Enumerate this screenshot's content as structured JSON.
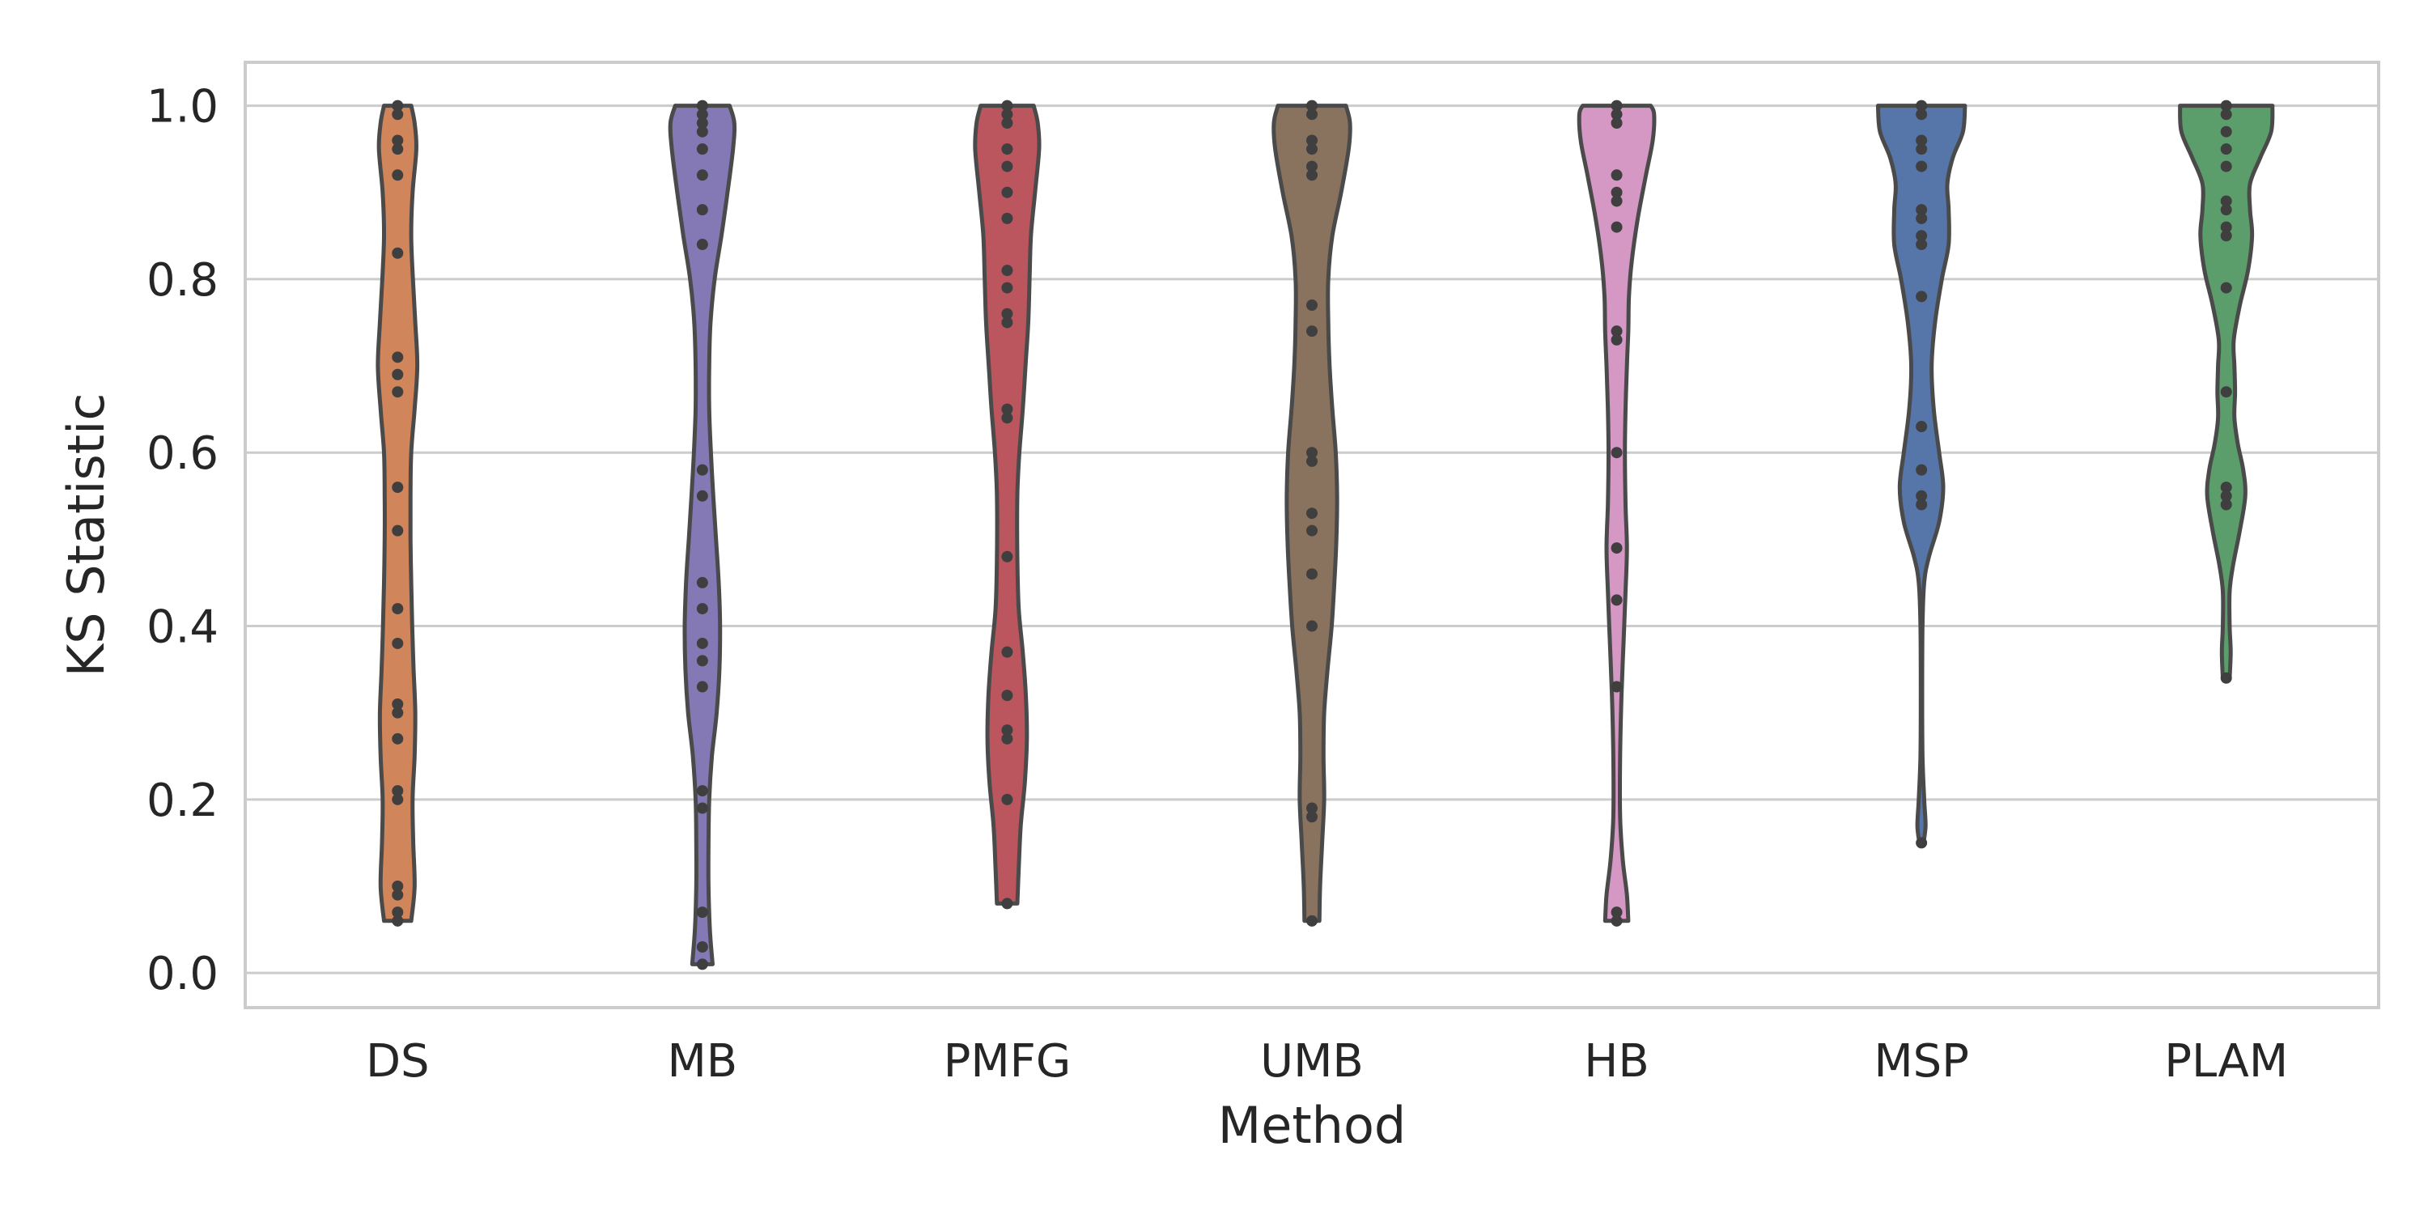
{
  "chart_data": {
    "type": "violin",
    "xlabel": "Method",
    "ylabel": "KS Statistic",
    "ylim": [
      -0.04,
      1.05
    ],
    "yticks": [
      "0.0",
      "0.2",
      "0.4",
      "0.6",
      "0.8",
      "1.0"
    ],
    "categories": [
      "DS",
      "MB",
      "PMFG",
      "UMB",
      "HB",
      "MSP",
      "PLAM"
    ],
    "grid": true,
    "series": [
      {
        "category": "DS",
        "color": "#d0855a",
        "min": 0.06,
        "max": 1.0,
        "points": [
          1.0,
          0.99,
          0.96,
          0.95,
          0.92,
          0.83,
          0.71,
          0.69,
          0.67,
          0.56,
          0.51,
          0.42,
          0.38,
          0.31,
          0.3,
          0.27,
          0.21,
          0.2,
          0.1,
          0.09,
          0.07,
          0.06
        ],
        "profile": [
          [
            0.06,
            0.4
          ],
          [
            0.1,
            0.5
          ],
          [
            0.15,
            0.46
          ],
          [
            0.2,
            0.44
          ],
          [
            0.25,
            0.5
          ],
          [
            0.3,
            0.52
          ],
          [
            0.35,
            0.47
          ],
          [
            0.4,
            0.43
          ],
          [
            0.45,
            0.4
          ],
          [
            0.5,
            0.38
          ],
          [
            0.55,
            0.38
          ],
          [
            0.6,
            0.4
          ],
          [
            0.65,
            0.5
          ],
          [
            0.7,
            0.58
          ],
          [
            0.75,
            0.52
          ],
          [
            0.8,
            0.45
          ],
          [
            0.85,
            0.4
          ],
          [
            0.9,
            0.44
          ],
          [
            0.95,
            0.55
          ],
          [
            0.98,
            0.5
          ],
          [
            1.0,
            0.4
          ]
        ]
      },
      {
        "category": "MB",
        "color": "#8479b5",
        "min": 0.01,
        "max": 1.0,
        "points": [
          1.0,
          0.99,
          0.98,
          0.97,
          0.95,
          0.92,
          0.88,
          0.84,
          0.58,
          0.55,
          0.45,
          0.42,
          0.38,
          0.36,
          0.33,
          0.21,
          0.19,
          0.07,
          0.03,
          0.01
        ],
        "profile": [
          [
            0.01,
            0.3
          ],
          [
            0.05,
            0.22
          ],
          [
            0.1,
            0.18
          ],
          [
            0.15,
            0.18
          ],
          [
            0.2,
            0.2
          ],
          [
            0.25,
            0.28
          ],
          [
            0.3,
            0.42
          ],
          [
            0.35,
            0.5
          ],
          [
            0.4,
            0.52
          ],
          [
            0.45,
            0.48
          ],
          [
            0.5,
            0.4
          ],
          [
            0.55,
            0.32
          ],
          [
            0.6,
            0.25
          ],
          [
            0.65,
            0.2
          ],
          [
            0.7,
            0.2
          ],
          [
            0.75,
            0.24
          ],
          [
            0.8,
            0.36
          ],
          [
            0.85,
            0.56
          ],
          [
            0.9,
            0.74
          ],
          [
            0.95,
            0.9
          ],
          [
            0.98,
            0.94
          ],
          [
            1.0,
            0.8
          ]
        ]
      },
      {
        "category": "PMFG",
        "color": "#bb555e",
        "min": 0.08,
        "max": 1.0,
        "points": [
          1.0,
          0.99,
          0.98,
          0.95,
          0.93,
          0.9,
          0.87,
          0.81,
          0.79,
          0.76,
          0.75,
          0.65,
          0.64,
          0.48,
          0.37,
          0.32,
          0.28,
          0.27,
          0.2,
          0.08
        ],
        "profile": [
          [
            0.08,
            0.3
          ],
          [
            0.12,
            0.34
          ],
          [
            0.17,
            0.4
          ],
          [
            0.22,
            0.52
          ],
          [
            0.27,
            0.58
          ],
          [
            0.32,
            0.55
          ],
          [
            0.37,
            0.46
          ],
          [
            0.42,
            0.34
          ],
          [
            0.48,
            0.3
          ],
          [
            0.55,
            0.3
          ],
          [
            0.6,
            0.36
          ],
          [
            0.65,
            0.46
          ],
          [
            0.7,
            0.54
          ],
          [
            0.75,
            0.62
          ],
          [
            0.8,
            0.66
          ],
          [
            0.85,
            0.7
          ],
          [
            0.9,
            0.82
          ],
          [
            0.95,
            0.94
          ],
          [
            0.98,
            0.9
          ],
          [
            1.0,
            0.78
          ]
        ]
      },
      {
        "category": "UMB",
        "color": "#8a735e",
        "min": 0.06,
        "max": 1.0,
        "points": [
          1.0,
          0.99,
          0.96,
          0.95,
          0.93,
          0.92,
          0.77,
          0.74,
          0.6,
          0.59,
          0.53,
          0.51,
          0.46,
          0.4,
          0.19,
          0.18,
          0.06
        ],
        "profile": [
          [
            0.06,
            0.22
          ],
          [
            0.1,
            0.24
          ],
          [
            0.15,
            0.3
          ],
          [
            0.2,
            0.36
          ],
          [
            0.25,
            0.34
          ],
          [
            0.3,
            0.36
          ],
          [
            0.35,
            0.46
          ],
          [
            0.4,
            0.58
          ],
          [
            0.45,
            0.66
          ],
          [
            0.5,
            0.72
          ],
          [
            0.55,
            0.74
          ],
          [
            0.6,
            0.7
          ],
          [
            0.65,
            0.6
          ],
          [
            0.7,
            0.52
          ],
          [
            0.75,
            0.48
          ],
          [
            0.8,
            0.48
          ],
          [
            0.85,
            0.6
          ],
          [
            0.9,
            0.86
          ],
          [
            0.95,
            1.08
          ],
          [
            0.98,
            1.12
          ],
          [
            1.0,
            1.0
          ]
        ]
      },
      {
        "category": "HB",
        "color": "#d597c4",
        "min": 0.06,
        "max": 1.0,
        "points": [
          1.0,
          0.99,
          0.98,
          0.92,
          0.9,
          0.89,
          0.86,
          0.74,
          0.73,
          0.6,
          0.49,
          0.43,
          0.33,
          0.07,
          0.06
        ],
        "profile": [
          [
            0.06,
            0.34
          ],
          [
            0.09,
            0.3
          ],
          [
            0.13,
            0.18
          ],
          [
            0.18,
            0.1
          ],
          [
            0.25,
            0.1
          ],
          [
            0.32,
            0.14
          ],
          [
            0.38,
            0.2
          ],
          [
            0.44,
            0.26
          ],
          [
            0.49,
            0.3
          ],
          [
            0.54,
            0.26
          ],
          [
            0.6,
            0.24
          ],
          [
            0.65,
            0.26
          ],
          [
            0.7,
            0.3
          ],
          [
            0.74,
            0.34
          ],
          [
            0.78,
            0.36
          ],
          [
            0.82,
            0.44
          ],
          [
            0.87,
            0.62
          ],
          [
            0.92,
            0.86
          ],
          [
            0.96,
            1.06
          ],
          [
            0.99,
            1.1
          ],
          [
            1.0,
            1.0
          ]
        ]
      },
      {
        "category": "MSP",
        "color": "#5675a9",
        "min": 0.15,
        "max": 1.0,
        "points": [
          1.0,
          0.99,
          0.96,
          0.95,
          0.93,
          0.88,
          0.87,
          0.85,
          0.84,
          0.78,
          0.63,
          0.58,
          0.55,
          0.54,
          0.15
        ],
        "profile": [
          [
            0.15,
            0.06
          ],
          [
            0.17,
            0.12
          ],
          [
            0.2,
            0.08
          ],
          [
            0.25,
            0.03
          ],
          [
            0.32,
            0.02
          ],
          [
            0.4,
            0.03
          ],
          [
            0.45,
            0.08
          ],
          [
            0.48,
            0.22
          ],
          [
            0.52,
            0.52
          ],
          [
            0.56,
            0.64
          ],
          [
            0.6,
            0.52
          ],
          [
            0.65,
            0.36
          ],
          [
            0.7,
            0.3
          ],
          [
            0.75,
            0.4
          ],
          [
            0.8,
            0.6
          ],
          [
            0.84,
            0.8
          ],
          [
            0.88,
            0.8
          ],
          [
            0.91,
            0.76
          ],
          [
            0.94,
            0.92
          ],
          [
            0.97,
            1.22
          ],
          [
            1.0,
            1.28
          ]
        ]
      },
      {
        "category": "PLAM",
        "color": "#5b9e6b",
        "min": 0.34,
        "max": 1.0,
        "points": [
          1.0,
          0.99,
          0.97,
          0.95,
          0.93,
          0.89,
          0.88,
          0.86,
          0.85,
          0.79,
          0.67,
          0.56,
          0.55,
          0.54,
          0.34
        ],
        "profile": [
          [
            0.34,
            0.1
          ],
          [
            0.37,
            0.13
          ],
          [
            0.4,
            0.1
          ],
          [
            0.44,
            0.1
          ],
          [
            0.47,
            0.2
          ],
          [
            0.51,
            0.4
          ],
          [
            0.55,
            0.56
          ],
          [
            0.58,
            0.5
          ],
          [
            0.61,
            0.34
          ],
          [
            0.64,
            0.24
          ],
          [
            0.67,
            0.26
          ],
          [
            0.7,
            0.24
          ],
          [
            0.73,
            0.22
          ],
          [
            0.77,
            0.4
          ],
          [
            0.81,
            0.64
          ],
          [
            0.85,
            0.76
          ],
          [
            0.88,
            0.7
          ],
          [
            0.91,
            0.7
          ],
          [
            0.94,
            1.0
          ],
          [
            0.97,
            1.32
          ],
          [
            1.0,
            1.36
          ]
        ]
      }
    ]
  }
}
